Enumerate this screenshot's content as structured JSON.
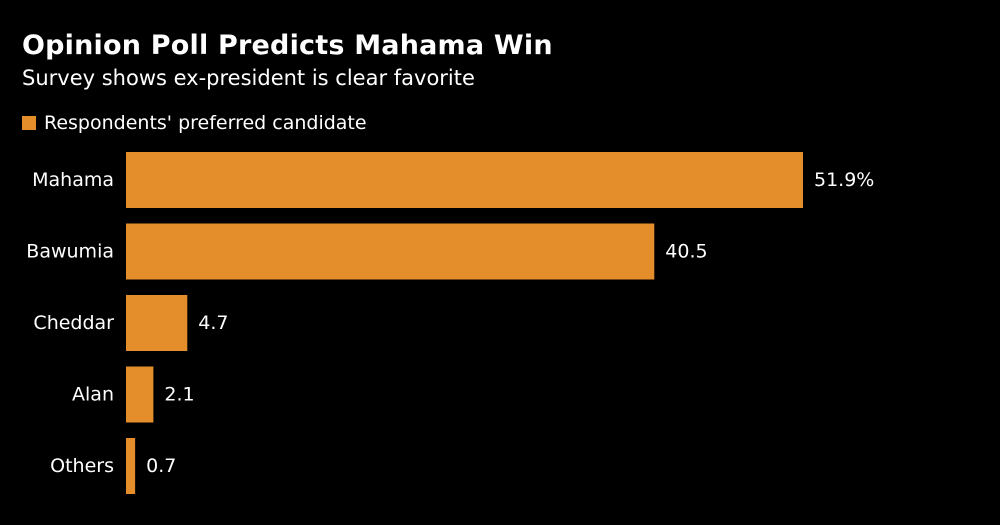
{
  "colors": {
    "background": "#000000",
    "bar": "#E38D2B",
    "text": "#FFFFFF"
  },
  "chart_data": {
    "type": "bar",
    "orientation": "horizontal",
    "title": "Opinion Poll Predicts Mahama Win",
    "subtitle": "Survey shows ex-president is clear favorite",
    "legend": {
      "position": "top-left",
      "entries": [
        "Respondents' preferred candidate"
      ]
    },
    "categories": [
      "Mahama",
      "Bawumia",
      "Cheddar",
      "Alan",
      "Others"
    ],
    "series": [
      {
        "name": "Respondents' preferred candidate",
        "values": [
          51.9,
          40.5,
          4.7,
          2.1,
          0.7
        ]
      }
    ],
    "value_labels": [
      "51.9%",
      "40.5",
      "4.7",
      "2.1",
      "0.7"
    ],
    "xlim": [
      0,
      51.9
    ],
    "grid": false
  }
}
